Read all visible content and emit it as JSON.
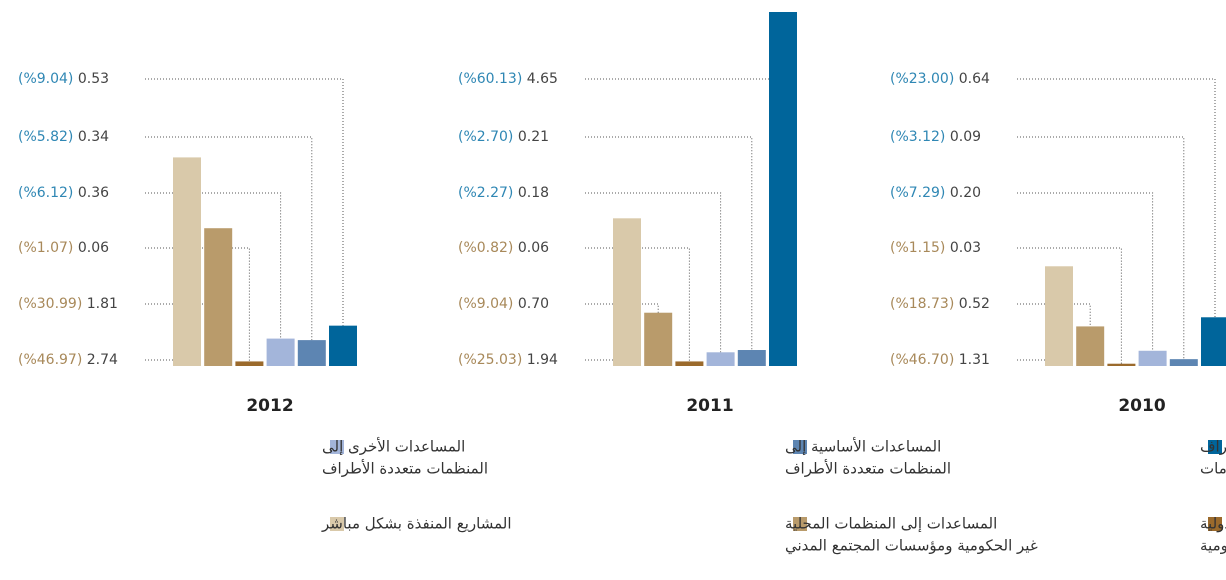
{
  "chart_data": {
    "type": "bar",
    "colors": [
      "#d9c9aa",
      "#b99b6b",
      "#9b6a2c",
      "#a3b5da",
      "#5d85b2",
      "#00659b"
    ],
    "share_colors": [
      "#a8895a",
      "#a8895a",
      "#a8895a",
      "#2f87b4",
      "#2f87b4",
      "#2f87b4"
    ],
    "legend": [
      [
        "المشاريع المنفذة بشكل مباشر"
      ],
      [
        "المساعدات إلى المنظمات المحلية",
        "غير الحكومية ومؤسسات المجتمع المدني"
      ],
      [
        "المساعدات إلى المنظمات الدولية",
        "غير الحكومية"
      ],
      [
        "المساعدات الأخرى إلى",
        "المنظمات متعددة الأطراف"
      ],
      [
        "المساعدات الأساسية إلى",
        "المنظمات متعددة الأطراف"
      ],
      [
        "المساعدات الثنائية الأطراف",
        "إلى الحكومات"
      ]
    ],
    "panels": [
      {
        "title": "2010",
        "values": [
          1.31,
          0.52,
          0.03,
          0.2,
          0.09,
          0.64
        ],
        "value_labels": [
          "1.31",
          "0.52",
          "0.03",
          "0.20",
          "0.09",
          "0.64"
        ],
        "shares": [
          46.7,
          18.73,
          1.15,
          7.29,
          3.12,
          23.0
        ],
        "share_labels": [
          "(%46.70)",
          "(%18.73)",
          "(%1.15)",
          "(%7.29)",
          "(%3.12)",
          "(%23.00)"
        ]
      },
      {
        "title": "2011",
        "values": [
          1.94,
          0.7,
          0.06,
          0.18,
          0.21,
          4.65
        ],
        "value_labels": [
          "1.94",
          "0.70",
          "0.06",
          "0.18",
          "0.21",
          "4.65"
        ],
        "shares": [
          25.03,
          9.04,
          0.82,
          2.27,
          2.7,
          60.13
        ],
        "share_labels": [
          "(%25.03)",
          "(%9.04)",
          "(%0.82)",
          "(%2.27)",
          "(%2.70)",
          "(%60.13)"
        ]
      },
      {
        "title": "2012",
        "values": [
          2.74,
          1.81,
          0.06,
          0.36,
          0.34,
          0.53
        ],
        "value_labels": [
          "2.74",
          "1.81",
          "0.06",
          "0.36",
          "0.34",
          "0.53"
        ],
        "shares": [
          46.97,
          30.99,
          1.07,
          6.12,
          5.82,
          9.04
        ],
        "share_labels": [
          "(%46.97)",
          "(%30.99)",
          "(%1.07)",
          "(%6.12)",
          "(%5.82)",
          "(%9.04)"
        ]
      }
    ]
  }
}
